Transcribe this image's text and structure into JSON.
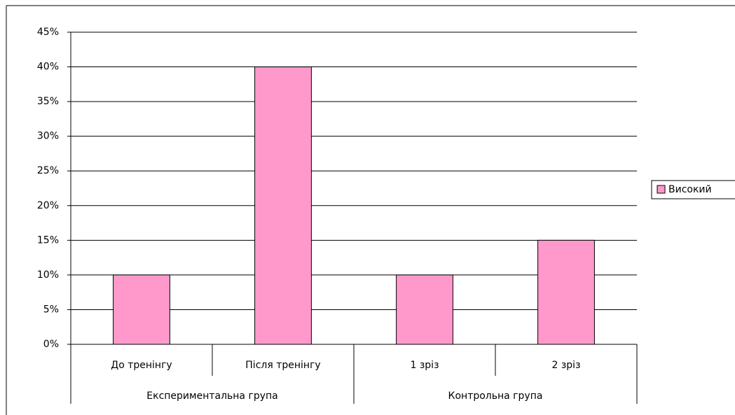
{
  "chart_data": {
    "type": "bar",
    "categories": [
      "До тренінгу",
      "Після тренінгу",
      "1 зріз",
      "2 зріз"
    ],
    "groups": [
      "Експериментальна група",
      "Контрольна група"
    ],
    "series": [
      {
        "name": "Високий",
        "color": "#ff99cc",
        "values": [
          10,
          40,
          10,
          15
        ]
      }
    ],
    "ylim": [
      0,
      45
    ],
    "yticks": [
      {
        "value": 0,
        "label": "0%"
      },
      {
        "value": 5,
        "label": "5%"
      },
      {
        "value": 10,
        "label": "10%"
      },
      {
        "value": 15,
        "label": "15%"
      },
      {
        "value": 20,
        "label": "20%"
      },
      {
        "value": 25,
        "label": "25%"
      },
      {
        "value": 30,
        "label": "30%"
      },
      {
        "value": 35,
        "label": "35%"
      },
      {
        "value": 40,
        "label": "40%"
      },
      {
        "value": 45,
        "label": "45%"
      }
    ],
    "grid": true,
    "legend": "right"
  }
}
